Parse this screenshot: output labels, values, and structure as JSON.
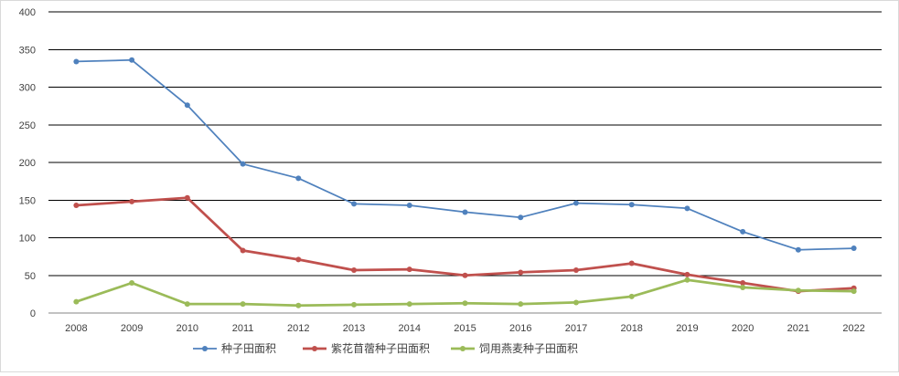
{
  "chart_data": {
    "type": "line",
    "title": "",
    "xlabel": "",
    "ylabel": "",
    "x": [
      "2008",
      "2009",
      "2010",
      "2011",
      "2012",
      "2013",
      "2014",
      "2015",
      "2016",
      "2017",
      "2018",
      "2019",
      "2020",
      "2021",
      "2022"
    ],
    "ylim": [
      0,
      400
    ],
    "yticks": [
      0,
      50,
      100,
      150,
      200,
      250,
      300,
      350,
      400
    ],
    "grid": "horizontal",
    "legend_position": "bottom",
    "series": [
      {
        "name": "种子田面积",
        "color": "#4f81bd",
        "values": [
          334,
          336,
          276,
          198,
          179,
          145,
          143,
          134,
          127,
          146,
          144,
          139,
          108,
          84,
          86
        ]
      },
      {
        "name": "紫花苜蓿种子田面积",
        "color": "#c0504d",
        "values": [
          143,
          148,
          153,
          83,
          71,
          57,
          58,
          50,
          54,
          57,
          66,
          51,
          40,
          29,
          33
        ]
      },
      {
        "name": "饲用燕麦种子田面积",
        "color": "#9bbb59",
        "values": [
          15,
          40,
          12,
          12,
          10,
          11,
          12,
          13,
          12,
          14,
          22,
          44,
          34,
          30,
          29
        ]
      }
    ]
  }
}
